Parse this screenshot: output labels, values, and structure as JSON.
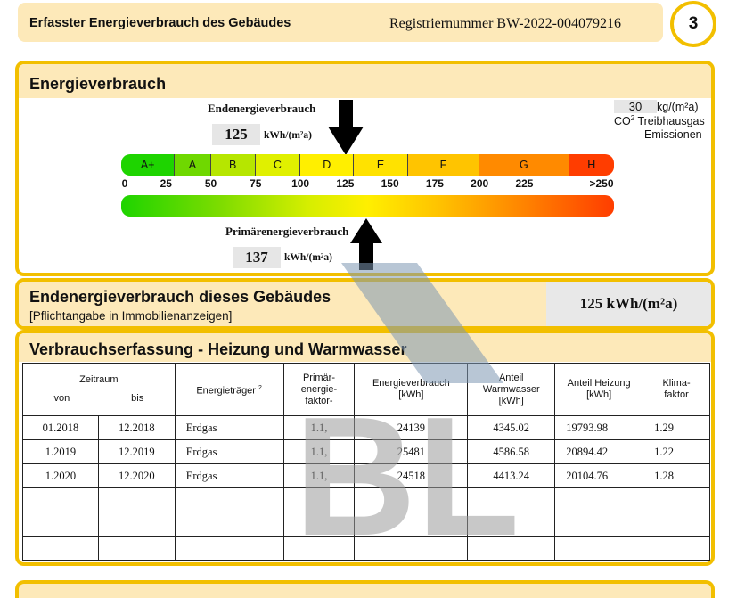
{
  "header": {
    "title": "Erfasster Energieverbrauch des Gebäudes",
    "registration": "Registriernummer  BW-2022-004079216",
    "page_number": "3"
  },
  "energy": {
    "title": "Energieverbrauch",
    "end_label": "Endenergieverbrauch",
    "end_value": "125",
    "end_unit": "kWh/(m²a)",
    "end_marker_value": 125,
    "primary_label": "Primärenergieverbrauch",
    "primary_value": "137",
    "primary_unit": "kWh/(m²a)",
    "primary_marker_value": 137,
    "co2_value": "30",
    "co2_unit": "kg/(m²a)",
    "co2_label_1": "CO",
    "co2_sup": "2",
    "co2_label_2": " Treibhausgas",
    "co2_label_3": "Emissionen",
    "scale_max": 275,
    "classes": [
      {
        "label": "A+",
        "color": "#1ed400"
      },
      {
        "label": "A",
        "color": "#6fd800"
      },
      {
        "label": "B",
        "color": "#b6e600"
      },
      {
        "label": "C",
        "color": "#e0f000"
      },
      {
        "label": "D",
        "color": "#ffef00"
      },
      {
        "label": "E",
        "color": "#ffe200"
      },
      {
        "label": "F",
        "color": "#ffc400"
      },
      {
        "label": "G",
        "color": "#ff8a00"
      },
      {
        "label": "H",
        "color": "#ff3d00"
      }
    ],
    "class_bounds": [
      0,
      30,
      50,
      75,
      100,
      130,
      160,
      200,
      250,
      275
    ],
    "ticks": [
      {
        "value": 0,
        "label": "0"
      },
      {
        "value": 25,
        "label": "25"
      },
      {
        "value": 50,
        "label": "50"
      },
      {
        "value": 75,
        "label": "75"
      },
      {
        "value": 100,
        "label": "100"
      },
      {
        "value": 125,
        "label": "125"
      },
      {
        "value": 150,
        "label": "150"
      },
      {
        "value": 175,
        "label": "175"
      },
      {
        "value": 200,
        "label": "200"
      },
      {
        "value": 225,
        "label": "225"
      },
      {
        "value": 275,
        "label": ">250"
      }
    ]
  },
  "building": {
    "title": "Endenergieverbrauch dieses Gebäudes",
    "subtitle": "[Pflichtangabe in Immobilienanzeigen]",
    "value": "125 kWh/(m²a)"
  },
  "consumption": {
    "title": "Verbrauchserfassung - Heizung und Warmwasser",
    "headers": {
      "zeitraum": "Zeitraum",
      "von": "von",
      "bis": "bis",
      "traeger": "Energieträger",
      "traeger_sup": "2",
      "primaer_1": "Primär-",
      "primaer_2": "energie-",
      "primaer_3": "faktor-",
      "ev_1": "Energieverbrauch",
      "ev_2": "[kWh]",
      "ww_1": "Anteil",
      "ww_2": "Warmwasser",
      "ww_3": "[kWh]",
      "hz_1": "Anteil Heizung",
      "hz_2": "[kWh]",
      "kl_1": "Klima-",
      "kl_2": "faktor"
    },
    "rows": [
      {
        "von": "01.2018",
        "bis": "12.2018",
        "traeger": "Erdgas",
        "faktor": "1.1,",
        "verbrauch": "24139",
        "warmwasser": "4345.02",
        "heizung": "19793.98",
        "klima": "1.29"
      },
      {
        "von": "1.2019",
        "bis": "12.2019",
        "traeger": "Erdgas",
        "faktor": "1.1,",
        "verbrauch": "25481",
        "warmwasser": "4586.58",
        "heizung": "20894.42",
        "klima": "1.22"
      },
      {
        "von": "1.2020",
        "bis": "12.2020",
        "traeger": "Erdgas",
        "faktor": "1.1,",
        "verbrauch": "24518",
        "warmwasser": "4413.24",
        "heizung": "20104.76",
        "klima": "1.28"
      },
      {
        "von": "",
        "bis": "",
        "traeger": "",
        "faktor": "",
        "verbrauch": "",
        "warmwasser": "",
        "heizung": "",
        "klima": ""
      },
      {
        "von": "",
        "bis": "",
        "traeger": "",
        "faktor": "",
        "verbrauch": "",
        "warmwasser": "",
        "heizung": "",
        "klima": ""
      },
      {
        "von": "",
        "bis": "",
        "traeger": "",
        "faktor": "",
        "verbrauch": "",
        "warmwasser": "",
        "heizung": "",
        "klima": ""
      }
    ]
  },
  "watermark": {
    "text": "BL"
  }
}
